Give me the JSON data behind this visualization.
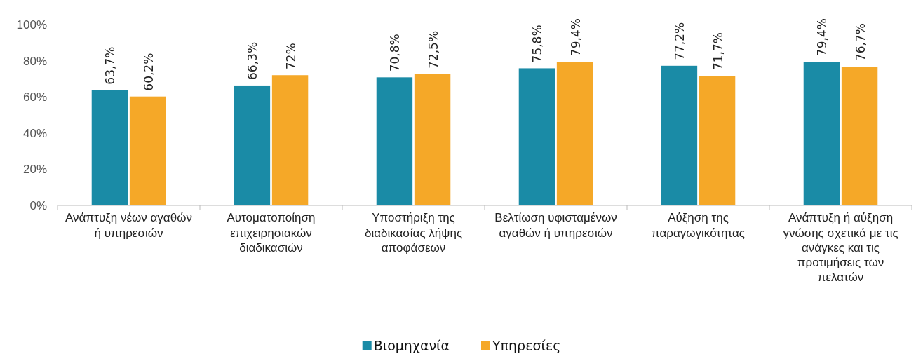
{
  "chart_data": {
    "type": "bar",
    "categories": [
      "Ανάπτυξη νέων αγαθών ή υπηρεσιών",
      "Αυτοματοποίηση επιχειρησιακών διαδικασιών",
      "Υποστήριξη της διαδικασίας λήψης αποφάσεων",
      "Βελτίωση υφισταμένων αγαθών ή υπηρεσιών",
      "Αύξηση της παραγωγικότητας",
      "Ανάπτυξη ή αύξηση γνώσης σχετικά με τις ανάγκες και τις προτιμήσεις των πελατών"
    ],
    "series": [
      {
        "name": "Βιομηχανία",
        "color": "#1a8ba6",
        "values": [
          63.7,
          66.3,
          70.8,
          75.8,
          77.2,
          79.4
        ],
        "value_labels": [
          "63,7%",
          "66,3%",
          "70,8%",
          "75,8%",
          "77,2%",
          "79,4%"
        ]
      },
      {
        "name": "Υπηρεσίες",
        "color": "#f5a828",
        "values": [
          60.2,
          72,
          72.5,
          79.4,
          71.7,
          76.7
        ],
        "value_labels": [
          "60,2%",
          "72%",
          "72,5%",
          "79,4%",
          "71,7%",
          "76,7%"
        ]
      }
    ],
    "ylim": [
      0,
      100
    ],
    "yticks": [
      {
        "value": 0,
        "label": "0%"
      },
      {
        "value": 20,
        "label": "20%"
      },
      {
        "value": 40,
        "label": "40%"
      },
      {
        "value": 60,
        "label": "60%"
      },
      {
        "value": 80,
        "label": "80%"
      },
      {
        "value": 100,
        "label": "100%"
      }
    ],
    "grid": false,
    "legend": "bottom"
  }
}
